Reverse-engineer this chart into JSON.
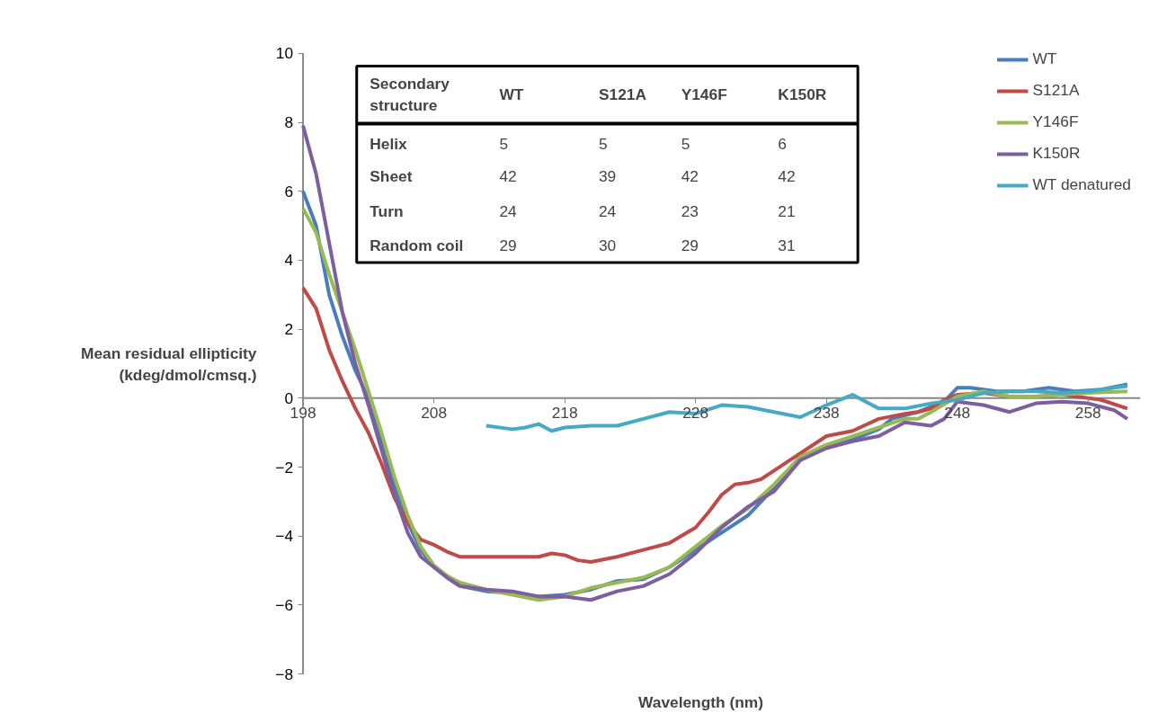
{
  "chart_data": {
    "type": "line",
    "xlabel": "Wavelength (nm)",
    "ylabel": "Mean residual ellipticity\n(kdeg/dmol/cmsq.)",
    "xlim": [
      198,
      262
    ],
    "ylim": [
      -8,
      10
    ],
    "xticks": [
      198,
      208,
      218,
      228,
      238,
      248,
      258
    ],
    "yticks": [
      -8,
      -6,
      -4,
      -2,
      0,
      2,
      4,
      6,
      8,
      10
    ],
    "grid": false,
    "legend": "top right",
    "line_style": "solid",
    "marker": "none",
    "series": [
      {
        "name": "WT",
        "color": "#4a7ebb",
        "x": [
          198,
          199,
          200,
          201,
          202,
          203,
          204,
          205,
          206,
          207,
          208,
          209,
          210,
          212,
          214,
          216,
          218,
          220,
          222,
          224,
          226,
          228,
          230,
          232,
          234,
          236,
          238,
          240,
          242,
          243,
          245,
          247,
          248,
          249,
          251,
          253,
          255,
          257,
          259,
          261
        ],
        "values": [
          6.0,
          5.0,
          3.0,
          1.8,
          0.8,
          0.0,
          -1.3,
          -2.5,
          -3.6,
          -4.4,
          -4.9,
          -5.2,
          -5.45,
          -5.6,
          -5.65,
          -5.75,
          -5.7,
          -5.55,
          -5.3,
          -5.25,
          -4.9,
          -4.4,
          -3.9,
          -3.4,
          -2.6,
          -1.7,
          -1.4,
          -1.2,
          -0.9,
          -0.6,
          -0.4,
          -0.1,
          0.3,
          0.3,
          0.2,
          0.2,
          0.3,
          0.2,
          0.25,
          0.4
        ]
      },
      {
        "name": "S121A",
        "color": "#be4b48",
        "x": [
          198,
          199,
          200,
          201,
          202,
          203,
          204,
          205,
          206,
          207,
          208,
          209,
          210,
          212,
          214,
          216,
          217,
          218,
          219,
          220,
          222,
          224,
          226,
          228,
          229,
          230,
          231,
          232,
          233,
          234,
          236,
          238,
          240,
          242,
          244,
          245,
          246,
          247,
          248,
          250,
          252,
          254,
          256,
          258,
          259,
          261
        ],
        "values": [
          3.2,
          2.6,
          1.4,
          0.5,
          -0.3,
          -1.0,
          -1.9,
          -2.9,
          -3.6,
          -4.1,
          -4.25,
          -4.45,
          -4.6,
          -4.6,
          -4.6,
          -4.6,
          -4.5,
          -4.55,
          -4.7,
          -4.75,
          -4.6,
          -4.4,
          -4.2,
          -3.75,
          -3.3,
          -2.8,
          -2.5,
          -2.45,
          -2.35,
          -2.1,
          -1.6,
          -1.1,
          -0.95,
          -0.6,
          -0.45,
          -0.4,
          -0.3,
          -0.05,
          0.1,
          0.15,
          0.05,
          0.05,
          0.1,
          0.0,
          -0.05,
          -0.3
        ]
      },
      {
        "name": "Y146F",
        "color": "#98b954",
        "x": [
          198,
          199,
          200,
          201,
          202,
          203,
          204,
          205,
          206,
          207,
          208,
          209,
          210,
          212,
          214,
          216,
          218,
          220,
          222,
          224,
          226,
          228,
          230,
          232,
          234,
          236,
          238,
          240,
          242,
          244,
          245,
          246,
          248,
          250,
          252,
          254,
          256,
          258,
          261
        ],
        "values": [
          5.5,
          4.8,
          3.6,
          2.5,
          1.4,
          0.2,
          -1.0,
          -2.3,
          -3.4,
          -4.3,
          -4.85,
          -5.15,
          -5.35,
          -5.55,
          -5.7,
          -5.85,
          -5.75,
          -5.5,
          -5.35,
          -5.2,
          -4.9,
          -4.3,
          -3.7,
          -3.2,
          -2.5,
          -1.7,
          -1.35,
          -1.1,
          -0.85,
          -0.6,
          -0.6,
          -0.4,
          0.05,
          0.2,
          0.05,
          0.05,
          0.1,
          0.15,
          0.2
        ]
      },
      {
        "name": "K150R",
        "color": "#7d5fa0",
        "x": [
          198,
          199,
          200,
          201,
          202,
          203,
          204,
          205,
          206,
          207,
          208,
          209,
          210,
          212,
          214,
          216,
          218,
          220,
          222,
          224,
          226,
          228,
          230,
          232,
          234,
          236,
          238,
          240,
          242,
          244,
          246,
          247,
          248,
          250,
          252,
          254,
          256,
          258,
          260,
          261
        ],
        "values": [
          7.9,
          6.5,
          4.5,
          2.5,
          1.0,
          -0.2,
          -1.5,
          -2.8,
          -3.9,
          -4.6,
          -4.9,
          -5.2,
          -5.45,
          -5.55,
          -5.6,
          -5.75,
          -5.75,
          -5.85,
          -5.6,
          -5.45,
          -5.1,
          -4.5,
          -3.75,
          -3.15,
          -2.7,
          -1.8,
          -1.45,
          -1.25,
          -1.1,
          -0.7,
          -0.8,
          -0.6,
          -0.1,
          -0.2,
          -0.4,
          -0.15,
          -0.1,
          -0.15,
          -0.35,
          -0.6
        ]
      },
      {
        "name": "WT denatured",
        "color": "#46aac5",
        "x": [
          212,
          214,
          215,
          216,
          217,
          218,
          220,
          222,
          224,
          226,
          228,
          230,
          232,
          234,
          236,
          238,
          240,
          242,
          244,
          246,
          248,
          250,
          252,
          254,
          256,
          258,
          260,
          261
        ],
        "values": [
          -0.8,
          -0.9,
          -0.85,
          -0.75,
          -0.95,
          -0.85,
          -0.8,
          -0.8,
          -0.6,
          -0.4,
          -0.45,
          -0.2,
          -0.25,
          -0.4,
          -0.55,
          -0.2,
          0.1,
          -0.3,
          -0.3,
          -0.15,
          -0.05,
          0.15,
          0.2,
          0.2,
          0.15,
          0.2,
          0.3,
          0.35
        ]
      }
    ],
    "annotations": [
      "Secondary structure",
      "WT",
      "S121A",
      "Y146F",
      "K150R",
      "Helix",
      "5",
      "5",
      "5",
      "6",
      "Sheet",
      "42",
      "39",
      "42",
      "42",
      "Turn",
      "24",
      "24",
      "23",
      "21",
      "Random coil",
      "29",
      "30",
      "29",
      "31"
    ]
  }
}
